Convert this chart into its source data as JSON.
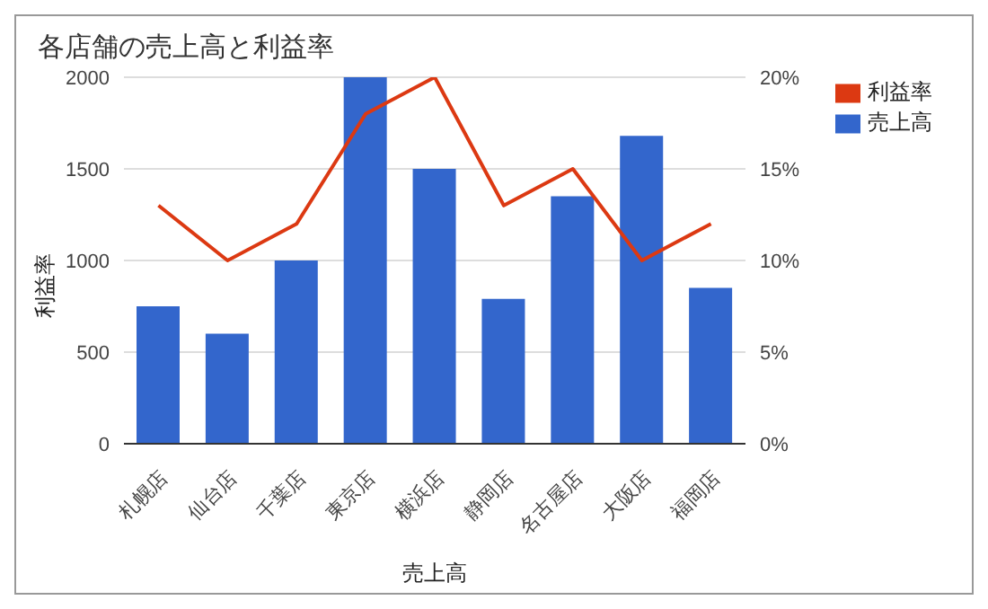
{
  "chart_data": {
    "type": "bar",
    "title": "各店舗の売上高と利益率",
    "xlabel": "売上高",
    "ylabel": "利益率",
    "categories": [
      "札幌店",
      "仙台店",
      "千葉店",
      "東京店",
      "横浜店",
      "静岡店",
      "名古屋店",
      "大阪店",
      "福岡店"
    ],
    "series": [
      {
        "name": "売上高",
        "color": "#3366cc",
        "values": [
          750,
          600,
          1000,
          2000,
          1500,
          790,
          1350,
          1680,
          850
        ]
      },
      {
        "name": "利益率",
        "type": "line",
        "axis": "y2",
        "color": "#dc3912",
        "values": [
          13,
          10,
          12,
          18,
          20,
          13,
          15,
          10,
          12
        ]
      }
    ],
    "ylim": [
      0,
      2000
    ],
    "yticks": [
      0,
      500,
      1000,
      1500,
      2000
    ],
    "y2lim": [
      0,
      20
    ],
    "y2ticks": [
      {
        "value": 0,
        "label": "0%"
      },
      {
        "value": 5,
        "label": "5%"
      },
      {
        "value": 10,
        "label": "10%"
      },
      {
        "value": 15,
        "label": "15%"
      },
      {
        "value": 20,
        "label": "20%"
      }
    ],
    "grid": "y",
    "legend": "top right",
    "marker": "none",
    "line_style": "solid"
  }
}
